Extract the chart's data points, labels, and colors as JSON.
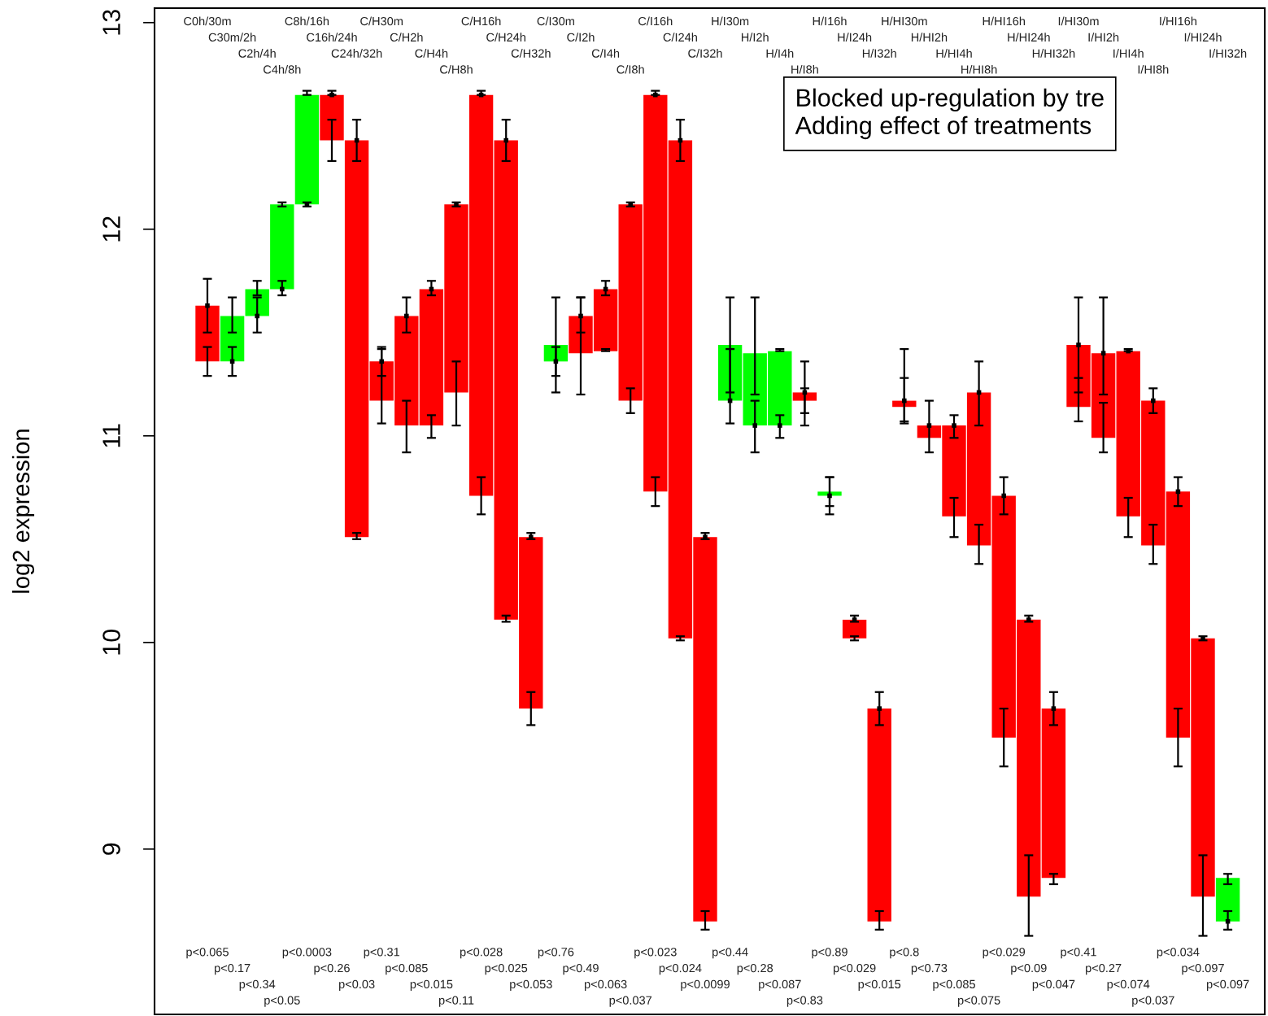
{
  "chart_data": {
    "type": "bar",
    "ylabel": "log2 expression",
    "categories": [
      "C0h/30m",
      "C30m/2h",
      "C2h/4h",
      "C4h/8h",
      "C8h/16h",
      "C16h/24h",
      "C24h/32h",
      "C/H30m",
      "C/H2h",
      "C/H4h",
      "C/H8h",
      "C/H16h",
      "C/H24h",
      "C/H32h",
      "C/I30m",
      "C/I2h",
      "C/I4h",
      "C/I8h",
      "C/I16h",
      "C/I24h",
      "C/I32h",
      "H/I30m",
      "H/I2h",
      "H/I4h",
      "H/I8h",
      "H/I16h",
      "H/I24h",
      "H/I32h",
      "H/HI30m",
      "H/HI2h",
      "H/HI4h",
      "H/HI8h",
      "H/HI16h",
      "H/HI24h",
      "H/HI32h",
      "I/HI30m",
      "I/HI2h",
      "I/HI4h",
      "I/HI8h",
      "I/HI16h",
      "I/HI24h",
      "I/HI32h"
    ],
    "ylim": [
      8.2,
      13.07
    ],
    "yticks": [
      9,
      10,
      11,
      12,
      13
    ],
    "grid": false,
    "legend": false,
    "series": [
      {
        "base": [
          11.63,
          11.36,
          11.58,
          11.71,
          12.12,
          12.65,
          12.43,
          11.36,
          11.58,
          11.71,
          12.12,
          12.65,
          12.43,
          10.51,
          11.36,
          11.58,
          11.71,
          12.12,
          12.65,
          12.43,
          10.51,
          11.17,
          11.05,
          11.05,
          11.21,
          10.71,
          10.11,
          9.68,
          11.17,
          11.05,
          11.05,
          11.21,
          10.71,
          10.11,
          9.68,
          11.44,
          11.4,
          11.41,
          11.17,
          10.73,
          10.02,
          8.65
        ],
        "values": [
          -0.27,
          0.22,
          0.13,
          0.41,
          0.53,
          -0.22,
          -1.92,
          -0.19,
          -0.53,
          -0.66,
          -0.91,
          -1.94,
          -2.32,
          -0.83,
          0.08,
          -0.18,
          -0.3,
          -0.95,
          -1.92,
          -2.41,
          -1.86,
          0.27,
          0.35,
          0.36,
          -0.04,
          0.02,
          -0.09,
          -1.03,
          -0.03,
          -0.06,
          -0.44,
          -0.74,
          -1.17,
          -1.34,
          -0.82,
          -0.3,
          -0.41,
          -0.8,
          -0.7,
          -1.19,
          -1.25,
          0.21
        ],
        "colors": [
          "#ff0000",
          "#00ff00",
          "#00ff00",
          "#00ff00",
          "#00ff00",
          "#ff0000",
          "#ff0000",
          "#ff0000",
          "#ff0000",
          "#ff0000",
          "#ff0000",
          "#ff0000",
          "#ff0000",
          "#ff0000",
          "#00ff00",
          "#ff0000",
          "#ff0000",
          "#ff0000",
          "#ff0000",
          "#ff0000",
          "#ff0000",
          "#00ff00",
          "#00ff00",
          "#00ff00",
          "#ff0000",
          "#00ff00",
          "#ff0000",
          "#ff0000",
          "#ff0000",
          "#ff0000",
          "#ff0000",
          "#ff0000",
          "#ff0000",
          "#ff0000",
          "#ff0000",
          "#ff0000",
          "#ff0000",
          "#ff0000",
          "#ff0000",
          "#ff0000",
          "#ff0000",
          "#00ff00"
        ],
        "errors": [
          [
            11.29,
            11.43
          ],
          [
            11.5,
            11.67
          ],
          [
            11.68,
            11.75
          ],
          [
            12.11,
            12.13
          ],
          [
            12.65,
            12.67
          ],
          [
            12.33,
            12.53
          ],
          [
            10.5,
            10.53
          ],
          [
            11.06,
            11.42
          ],
          [
            10.92,
            11.17
          ],
          [
            10.99,
            11.1
          ],
          [
            11.05,
            11.36
          ],
          [
            10.62,
            10.8
          ],
          [
            10.1,
            10.13
          ],
          [
            9.6,
            9.76
          ],
          [
            11.21,
            11.67
          ],
          [
            11.2,
            11.67
          ],
          [
            11.41,
            11.42
          ],
          [
            11.11,
            11.23
          ],
          [
            10.66,
            10.8
          ],
          [
            10.01,
            10.03
          ],
          [
            8.61,
            8.7
          ],
          [
            11.21,
            11.67
          ],
          [
            11.2,
            11.67
          ],
          [
            11.41,
            11.42
          ],
          [
            11.11,
            11.23
          ],
          [
            10.66,
            10.8
          ],
          [
            10.01,
            10.03
          ],
          [
            8.61,
            8.7
          ],
          [
            11.07,
            11.28
          ],
          null,
          [
            10.51,
            10.7
          ],
          [
            10.38,
            10.57
          ],
          [
            9.4,
            9.68
          ],
          [
            8.58,
            8.97
          ],
          [
            8.83,
            8.88
          ],
          [
            11.07,
            11.28
          ],
          [
            10.92,
            11.16
          ],
          [
            10.51,
            10.7
          ],
          [
            10.38,
            10.57
          ],
          [
            9.4,
            9.68
          ],
          [
            8.58,
            8.97
          ],
          [
            8.83,
            8.88
          ]
        ]
      },
      {
        "type": "scatter",
        "marker": "square",
        "color": "#000000",
        "values": [
          11.63,
          11.36,
          11.58,
          11.71,
          12.12,
          12.65,
          12.43,
          11.36,
          11.58,
          11.71,
          12.12,
          12.65,
          12.43,
          10.51,
          11.36,
          11.58,
          11.71,
          12.12,
          12.65,
          12.43,
          10.51,
          11.17,
          11.05,
          11.05,
          11.21,
          10.71,
          10.11,
          9.68,
          11.17,
          11.05,
          11.05,
          11.21,
          10.71,
          10.11,
          9.68,
          11.44,
          11.4,
          11.41,
          11.17,
          10.73,
          10.02,
          8.65
        ],
        "errors": [
          [
            11.5,
            11.76
          ],
          [
            11.29,
            11.43
          ],
          [
            11.5,
            11.67
          ],
          [
            11.68,
            11.75
          ],
          [
            12.11,
            12.13
          ],
          [
            12.65,
            12.67
          ],
          [
            12.33,
            12.53
          ],
          [
            11.29,
            11.43
          ],
          [
            11.5,
            11.67
          ],
          [
            11.68,
            11.75
          ],
          [
            12.11,
            12.13
          ],
          [
            12.65,
            12.67
          ],
          [
            12.33,
            12.53
          ],
          [
            10.5,
            10.53
          ],
          [
            11.29,
            11.43
          ],
          [
            11.5,
            11.67
          ],
          [
            11.68,
            11.75
          ],
          [
            12.11,
            12.13
          ],
          [
            12.65,
            12.67
          ],
          [
            12.33,
            12.53
          ],
          [
            10.5,
            10.53
          ],
          [
            11.06,
            11.42
          ],
          [
            10.92,
            11.17
          ],
          [
            10.99,
            11.1
          ],
          [
            11.05,
            11.36
          ],
          [
            10.62,
            10.8
          ],
          [
            10.1,
            10.13
          ],
          [
            9.6,
            9.76
          ],
          [
            11.06,
            11.42
          ],
          [
            10.92,
            11.17
          ],
          [
            10.99,
            11.1
          ],
          [
            11.05,
            11.36
          ],
          [
            10.62,
            10.8
          ],
          [
            10.1,
            10.13
          ],
          [
            9.6,
            9.76
          ],
          [
            11.21,
            11.67
          ],
          [
            11.2,
            11.67
          ],
          [
            11.41,
            11.42
          ],
          [
            11.11,
            11.23
          ],
          [
            10.66,
            10.8
          ],
          [
            10.01,
            10.03
          ],
          [
            8.61,
            8.7
          ]
        ]
      }
    ],
    "annotations": [
      "Blocked up-regulation by tre\nAdding effect of treatments",
      "p<0.065",
      "p<0.17",
      "p<0.34",
      "p<0.05",
      "p<0.0003",
      "p<0.26",
      "p<0.03",
      "p<0.31",
      "p<0.085",
      "p<0.015",
      "p<0.11",
      "p<0.028",
      "p<0.025",
      "p<0.053",
      "p<0.76",
      "p<0.49",
      "p<0.063",
      "p<0.037",
      "p<0.023",
      "p<0.024",
      "p<0.0099",
      "p<0.44",
      "p<0.28",
      "p<0.087",
      "p<0.83",
      "p<0.89",
      "p<0.029",
      "p<0.015",
      "p<0.8",
      "p<0.73",
      "p<0.085",
      "p<0.075",
      "p<0.029",
      "p<0.09",
      "p<0.047",
      "p<0.41",
      "p<0.27",
      "p<0.074",
      "p<0.037",
      "p<0.034",
      "p<0.097",
      "p<0.097"
    ]
  }
}
